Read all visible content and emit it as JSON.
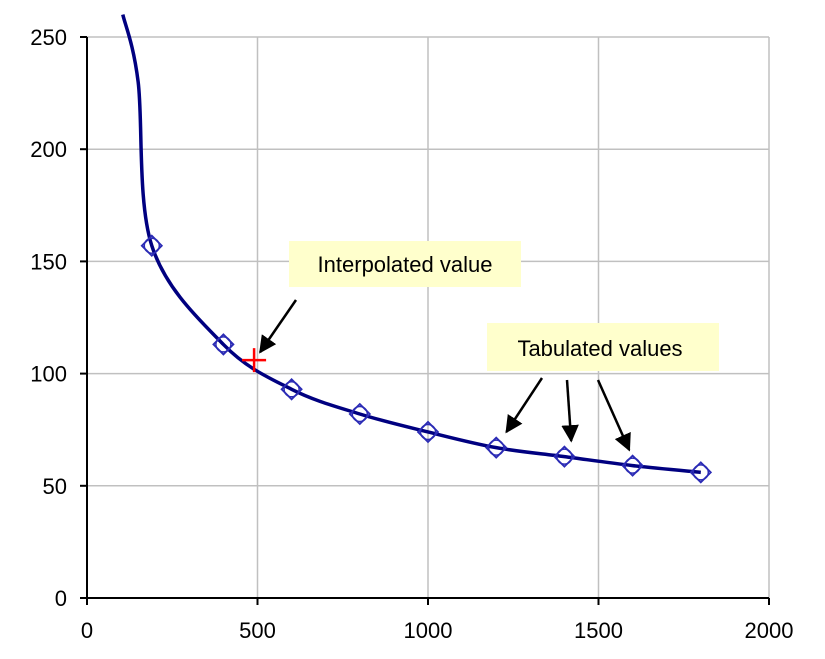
{
  "chart_data": {
    "type": "line",
    "title": "",
    "xlabel": "",
    "ylabel": "",
    "xlim": [
      0,
      2000
    ],
    "ylim": [
      0,
      250
    ],
    "xticks": [
      "0",
      "500",
      "1000",
      "1500",
      "2000"
    ],
    "yticks": [
      "0",
      "50",
      "100",
      "150",
      "200",
      "250"
    ],
    "grid": true,
    "series": [
      {
        "color": "#000080",
        "marker": "open-diamond",
        "x": [
          105,
          150,
          190,
          400,
          600,
          800,
          1000,
          1200,
          1400,
          1600,
          1800
        ],
        "y": [
          260,
          230,
          157,
          113,
          93,
          82,
          74,
          67,
          63,
          59,
          56
        ],
        "tabulated_x": [
          190,
          400,
          600,
          800,
          1000,
          1200,
          1400,
          1600,
          1800
        ],
        "tabulated_y": [
          157,
          113,
          93,
          82,
          74,
          67,
          63,
          59,
          56
        ]
      }
    ],
    "interpolated_point": {
      "x": 490,
      "y": 106,
      "color": "#ff0000",
      "marker": "plus"
    },
    "annotations": [
      {
        "text": "Interpolated value",
        "target_x": 490,
        "target_y": 106
      },
      {
        "text": "Tabulated values",
        "targets": [
          [
            1230,
            74
          ],
          [
            1420,
            70
          ],
          [
            1590,
            66
          ]
        ]
      }
    ]
  },
  "colors": {
    "line": "#000080",
    "marker": "#2b2bb5",
    "interp": "#ff0000",
    "grid": "#c0c0c0",
    "note_bg": "#ffffcc"
  }
}
